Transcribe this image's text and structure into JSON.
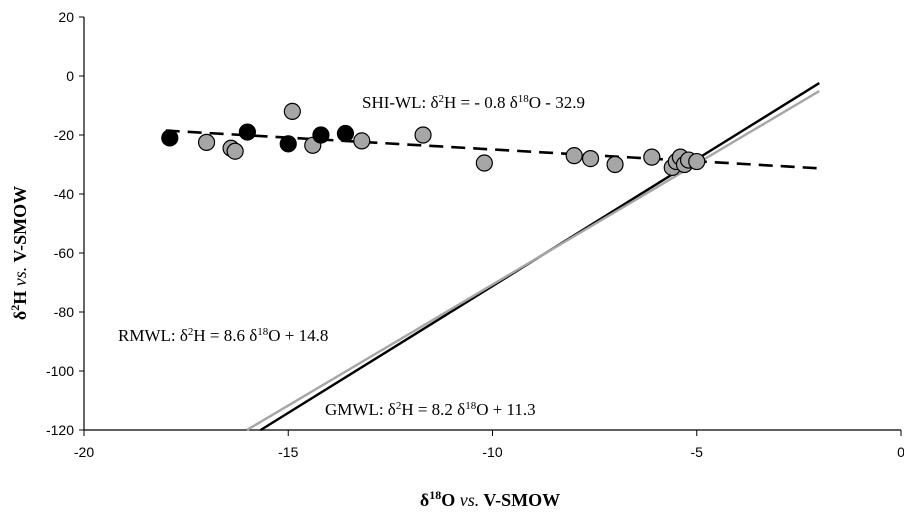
{
  "chart_data": {
    "type": "scatter",
    "xlabel": {
      "prefix": "δ",
      "sup": "18",
      "main": "O ",
      "vs": "vs.",
      "suffix": " V-SMOW"
    },
    "ylabel": {
      "prefix": "δ",
      "sup": "2",
      "main": "H ",
      "vs": "vs.",
      "suffix": " V-SMOW"
    },
    "xlim": [
      -20,
      0
    ],
    "ylim": [
      -120,
      20
    ],
    "x_ticks": [
      -20,
      -15,
      -10,
      -5,
      0
    ],
    "y_ticks": [
      20,
      0,
      -20,
      -40,
      -60,
      -80,
      -100,
      -120
    ],
    "grid": false,
    "series": [
      {
        "marker": "circle",
        "fill": "#000000",
        "points": [
          {
            "x": -17.9,
            "y": -21
          },
          {
            "x": -16.0,
            "y": -19
          },
          {
            "x": -15.0,
            "y": -23
          },
          {
            "x": -14.2,
            "y": -20
          },
          {
            "x": -13.6,
            "y": -19.5
          }
        ]
      },
      {
        "marker": "circle",
        "fill": "#a6a6a6",
        "points": [
          {
            "x": -17.0,
            "y": -22.5
          },
          {
            "x": -16.4,
            "y": -24.5
          },
          {
            "x": -16.3,
            "y": -25.5
          },
          {
            "x": -14.9,
            "y": -12
          },
          {
            "x": -14.4,
            "y": -23.5
          },
          {
            "x": -13.2,
            "y": -22
          },
          {
            "x": -11.7,
            "y": -20
          },
          {
            "x": -10.2,
            "y": -29.5
          },
          {
            "x": -8.0,
            "y": -27
          },
          {
            "x": -7.6,
            "y": -28
          },
          {
            "x": -7.0,
            "y": -30
          },
          {
            "x": -6.1,
            "y": -27.5
          },
          {
            "x": -5.6,
            "y": -31
          },
          {
            "x": -5.5,
            "y": -29
          },
          {
            "x": -5.4,
            "y": -27.5
          },
          {
            "x": -5.3,
            "y": -30
          },
          {
            "x": -5.2,
            "y": -28.5
          },
          {
            "x": -5.0,
            "y": -29
          }
        ]
      }
    ],
    "lines": [
      {
        "id": "shi-wl",
        "slope": -0.8,
        "intercept": -32.9,
        "x_range": [
          -18,
          -2
        ],
        "style": "dashed",
        "color": "#000000"
      },
      {
        "id": "rmwl",
        "slope": 8.6,
        "intercept": 14.8,
        "x_range": [
          -15.68,
          -2
        ],
        "style": "solid",
        "color": "#000000"
      },
      {
        "id": "gmwl",
        "slope": 8.2,
        "intercept": 11.3,
        "x_range": [
          -16.01,
          -2
        ],
        "style": "solid",
        "color": "#a6a6a6"
      }
    ],
    "annotations": [
      {
        "id": "shi-wl",
        "parts": [
          "SHI-WL: δ",
          "2",
          "H  = - 0.8 δ",
          "18",
          "O - 32.9"
        ]
      },
      {
        "id": "rmwl",
        "parts": [
          "RMWL: δ",
          "2",
          "H  = 8.6 δ",
          "18",
          "O + 14.8"
        ]
      },
      {
        "id": "gmwl",
        "parts": [
          "GMWL: δ",
          "2",
          "H  = 8.2 δ",
          "18",
          "O + 11.3"
        ]
      }
    ]
  }
}
